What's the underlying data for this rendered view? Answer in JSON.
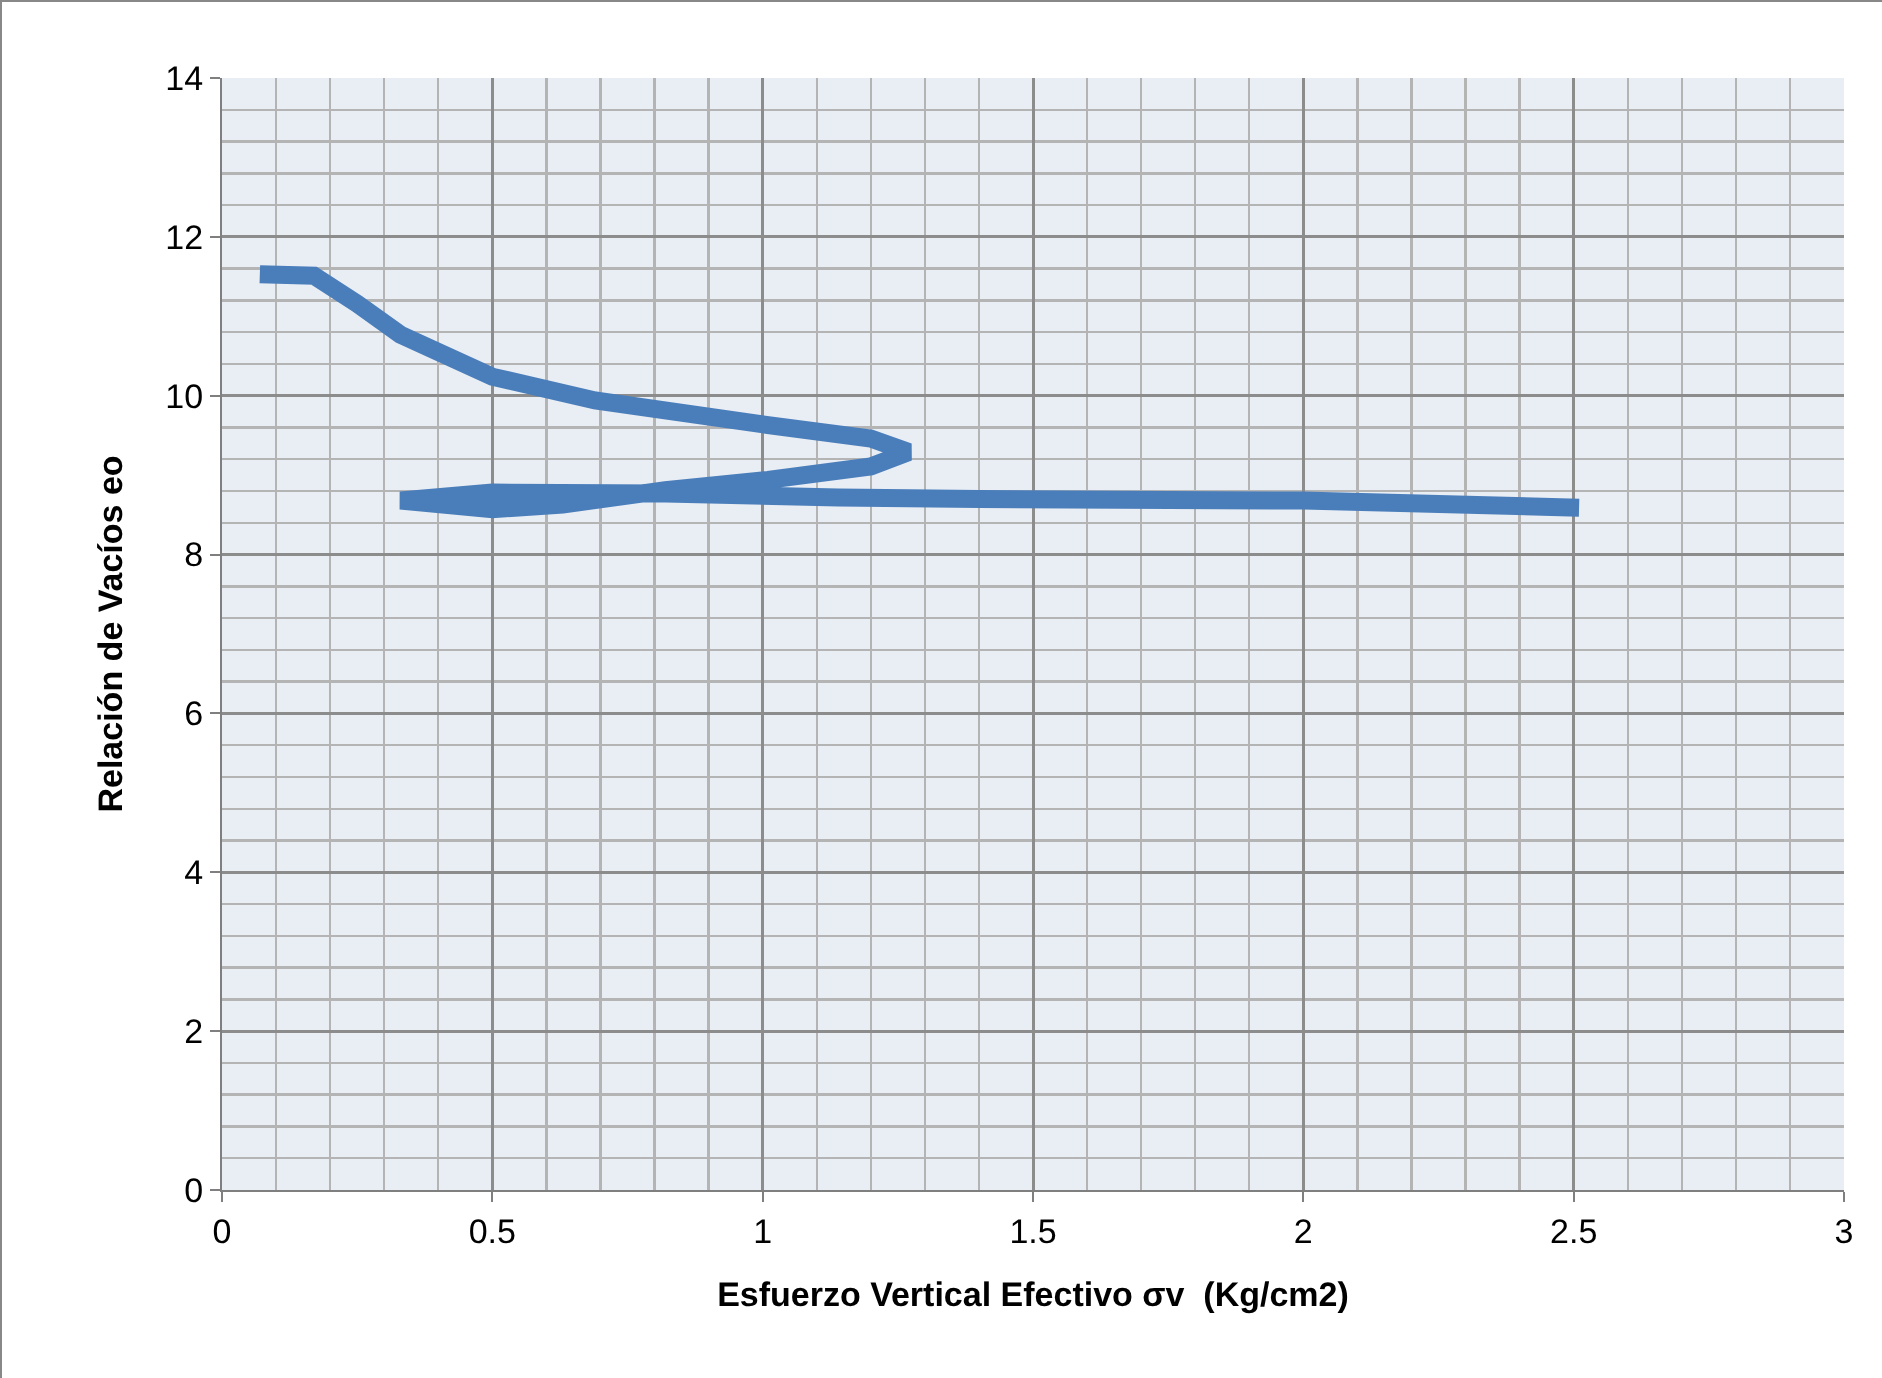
{
  "chart_data": {
    "type": "line",
    "xlabel": "Esfuerzo Vertical Efectivo σv  (Kg/cm2)",
    "ylabel": "Relación de Vacíos eo",
    "x": [
      0.07,
      0.17,
      0.25,
      0.33,
      0.5,
      0.69,
      1.01,
      1.2,
      1.27,
      1.2,
      1.01,
      0.82,
      0.63,
      0.5,
      0.33,
      0.5,
      0.82,
      1.14,
      1.4,
      2.0,
      2.51
    ],
    "series": [
      {
        "color": "#4a7ebb",
        "values": [
          11.53,
          11.51,
          11.16,
          10.77,
          10.24,
          9.94,
          9.63,
          9.46,
          9.29,
          9.11,
          8.94,
          8.81,
          8.63,
          8.57,
          8.68,
          8.78,
          8.77,
          8.72,
          8.7,
          8.68,
          8.59
        ]
      }
    ],
    "xlim": [
      0,
      3
    ],
    "xticks": [
      0,
      {
        "value": 0.1,
        "label": null
      },
      {
        "value": 0.2,
        "label": null
      },
      {
        "value": 0.3,
        "label": null
      },
      {
        "value": 0.4,
        "label": null
      },
      0.5,
      {
        "value": 0.6,
        "label": null
      },
      {
        "value": 0.7,
        "label": null
      },
      {
        "value": 0.8,
        "label": null
      },
      {
        "value": 0.9,
        "label": null
      },
      1,
      {
        "value": 1.1,
        "label": null
      },
      {
        "value": 1.2,
        "label": null
      },
      {
        "value": 1.3,
        "label": null
      },
      {
        "value": 1.4,
        "label": null
      },
      1.5,
      {
        "value": 1.6,
        "label": null
      },
      {
        "value": 1.7,
        "label": null
      },
      {
        "value": 1.8,
        "label": null
      },
      {
        "value": 1.9,
        "label": null
      },
      2,
      {
        "value": 2.1,
        "label": null
      },
      {
        "value": 2.2,
        "label": null
      },
      {
        "value": 2.3,
        "label": null
      },
      {
        "value": 2.4,
        "label": null
      },
      2.5,
      {
        "value": 2.6,
        "label": null
      },
      {
        "value": 2.7,
        "label": null
      },
      {
        "value": 2.8,
        "label": null
      },
      {
        "value": 2.9,
        "label": null
      },
      3
    ],
    "ylim": [
      0,
      14
    ],
    "yticks": [
      0,
      {
        "value": 0.4,
        "label": null
      },
      {
        "value": 0.8,
        "label": null
      },
      {
        "value": 1.2,
        "label": null
      },
      {
        "value": 1.6,
        "label": null
      },
      2,
      {
        "value": 2.4,
        "label": null
      },
      {
        "value": 2.8,
        "label": null
      },
      {
        "value": 3.2,
        "label": null
      },
      {
        "value": 3.6,
        "label": null
      },
      4,
      {
        "value": 4.4,
        "label": null
      },
      {
        "value": 4.8,
        "label": null
      },
      {
        "value": 5.2,
        "label": null
      },
      {
        "value": 5.6,
        "label": null
      },
      6,
      {
        "value": 6.4,
        "label": null
      },
      {
        "value": 6.8,
        "label": null
      },
      {
        "value": 7.2,
        "label": null
      },
      {
        "value": 7.6,
        "label": null
      },
      8,
      {
        "value": 8.4,
        "label": null
      },
      {
        "value": 8.8,
        "label": null
      },
      {
        "value": 9.2,
        "label": null
      },
      {
        "value": 9.6,
        "label": null
      },
      10,
      {
        "value": 10.4,
        "label": null
      },
      {
        "value": 10.8,
        "label": null
      },
      {
        "value": 11.2,
        "label": null
      },
      {
        "value": 11.6,
        "label": null
      },
      12,
      {
        "value": 12.4,
        "label": null
      },
      {
        "value": 12.8,
        "label": null
      },
      {
        "value": 13.2,
        "label": null
      },
      {
        "value": 13.6,
        "label": null
      },
      14
    ],
    "grid": true,
    "marker": "none",
    "line_style": "solid"
  }
}
